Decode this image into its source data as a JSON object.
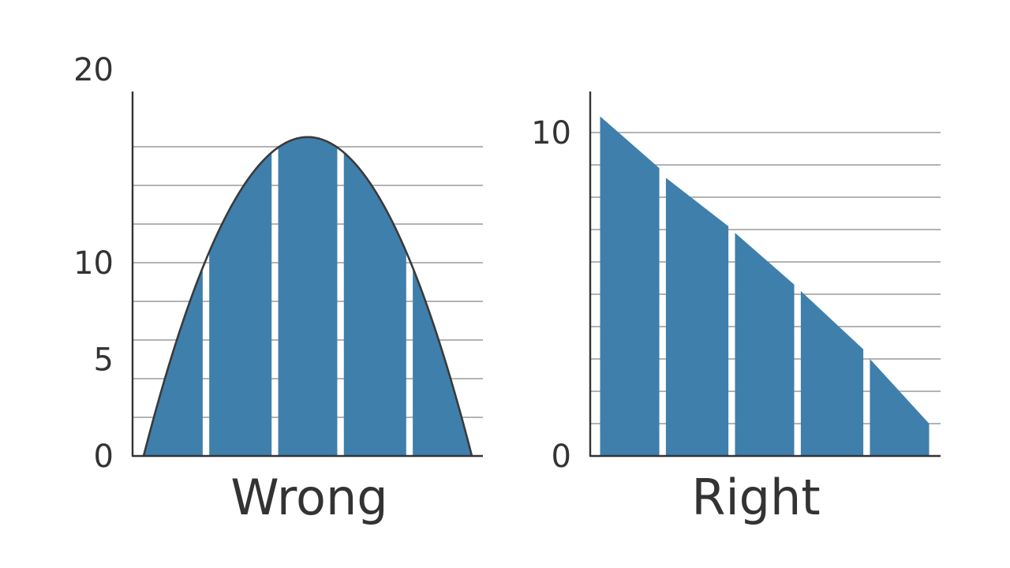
{
  "colors": {
    "fill": "#3f7fac",
    "grid": "#9a9a9a",
    "axis": "#333333",
    "outline": "#3a3a3a",
    "text": "#333333"
  },
  "chart_data": [
    {
      "type": "area",
      "caption": "Wrong",
      "curve": "parabola",
      "curve_peak": 16.5,
      "x_range": [
        0,
        10
      ],
      "ylim": [
        0,
        20
      ],
      "yticks": [
        {
          "value": 0,
          "label": "0"
        },
        {
          "value": 5,
          "label": "5"
        },
        {
          "value": 10,
          "label": "10"
        },
        {
          "value": 20,
          "label": "20"
        }
      ],
      "gridlines": [
        2,
        4,
        6,
        8,
        10,
        12,
        14,
        16
      ],
      "bars": [
        {
          "x0": 0,
          "x1": 1.8,
          "top": 9.5
        },
        {
          "x0": 2.0,
          "x1": 3.9,
          "top": 15.5
        },
        {
          "x0": 4.1,
          "x1": 5.9,
          "top": 16.5
        },
        {
          "x0": 6.1,
          "x1": 8.0,
          "top": 15.5
        },
        {
          "x0": 8.2,
          "x1": 10,
          "top": 9.5
        }
      ],
      "grid": true,
      "legend": "none"
    },
    {
      "type": "area",
      "caption": "Right",
      "x_range": [
        0,
        10
      ],
      "ylim": [
        0,
        11
      ],
      "yticks": [
        {
          "value": 0,
          "label": "0"
        },
        {
          "value": 10,
          "label": "10"
        }
      ],
      "gridlines": [
        1,
        2,
        3,
        4,
        5,
        6,
        7,
        8,
        9,
        10
      ],
      "bars": [
        {
          "x0": 0.3,
          "x1": 2.1,
          "top_left": 10.5,
          "top_right": 8.9
        },
        {
          "x0": 2.3,
          "x1": 4.2,
          "top_left": 8.6,
          "top_right": 7.1
        },
        {
          "x0": 4.4,
          "x1": 6.2,
          "top_left": 6.9,
          "top_right": 5.3
        },
        {
          "x0": 6.4,
          "x1": 8.3,
          "top_left": 5.1,
          "top_right": 3.3
        },
        {
          "x0": 8.5,
          "x1": 10.3,
          "top_left": 3.0,
          "top_right": 1.0
        }
      ],
      "grid": true,
      "legend": "none"
    }
  ]
}
